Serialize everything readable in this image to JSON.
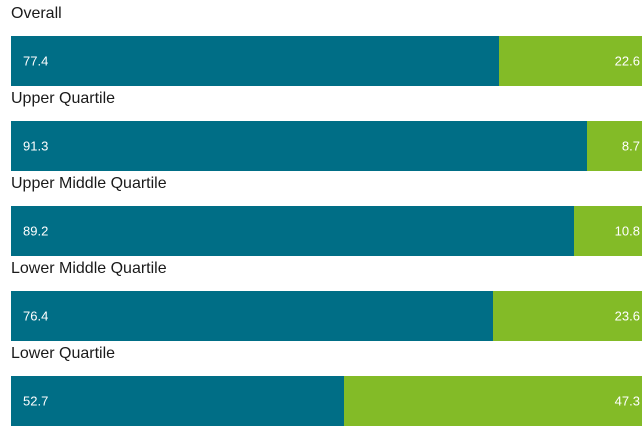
{
  "chart_data": {
    "type": "bar",
    "orientation": "horizontal",
    "stacked": true,
    "categories": [
      "Overall",
      "Upper Quartile",
      "Upper Middle Quartile",
      "Lower Middle Quartile",
      "Lower Quartile"
    ],
    "series": [
      {
        "values": [
          77.4,
          91.3,
          89.2,
          76.4,
          52.7
        ],
        "color": "#006e86"
      },
      {
        "values": [
          22.6,
          8.7,
          10.8,
          23.6,
          47.3
        ],
        "color": "#83bb27"
      }
    ],
    "xlim": [
      0,
      100
    ],
    "grid": false,
    "legend": "none"
  }
}
